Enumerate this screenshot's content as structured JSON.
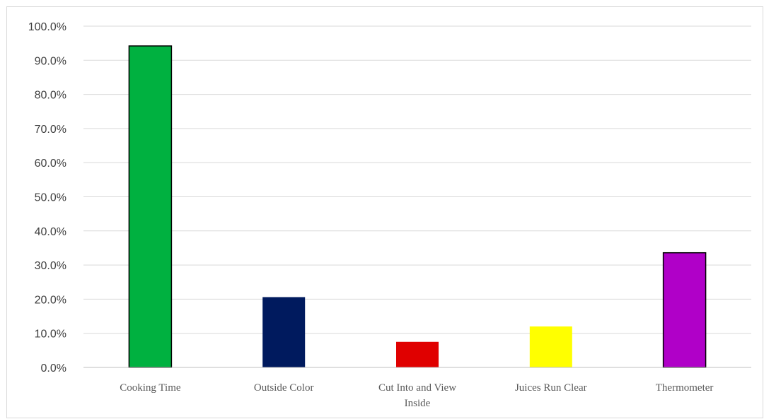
{
  "chart_data": {
    "type": "bar",
    "title": "",
    "xlabel": "",
    "ylabel": "",
    "categories": [
      "Cooking Time",
      "Outside Color",
      "Cut Into and View Inside",
      "Juices Run Clear",
      "Thermometer"
    ],
    "values": [
      94.2,
      20.6,
      7.5,
      12.0,
      33.6
    ],
    "colors": [
      "#00b140",
      "#001a5e",
      "#e00000",
      "#ffff00",
      "#b000c8"
    ],
    "outlined": [
      true,
      false,
      false,
      false,
      true
    ],
    "ylim": [
      0,
      100
    ],
    "ytick_step": 10,
    "ytick_labels": [
      "0.0%",
      "10.0%",
      "20.0%",
      "30.0%",
      "40.0%",
      "50.0%",
      "60.0%",
      "70.0%",
      "80.0%",
      "90.0%",
      "100.0%"
    ],
    "grid": true,
    "legend": "none"
  }
}
